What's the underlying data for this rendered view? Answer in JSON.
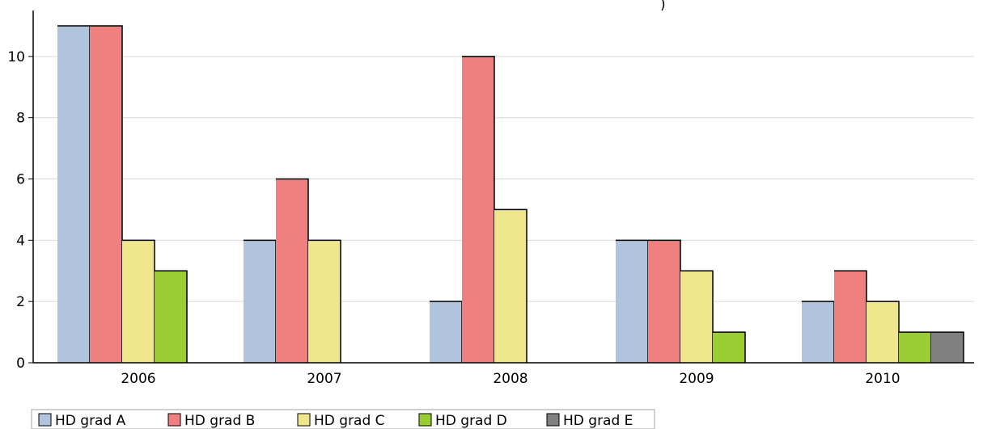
{
  "chart_data": {
    "type": "bar",
    "title": "",
    "xlabel": "",
    "ylabel": "",
    "categories": [
      "2006",
      "2007",
      "2008",
      "2009",
      "2010"
    ],
    "ylim": [
      0,
      11.5
    ],
    "yticks": [
      0,
      2,
      4,
      6,
      8,
      10
    ],
    "grid": true,
    "legend_position": "bottom-left",
    "series": [
      {
        "name": "HD grad A",
        "color": "#b0c4de",
        "values": [
          11,
          4,
          2,
          4,
          2
        ]
      },
      {
        "name": "HD grad B",
        "color": "#f08080",
        "values": [
          11,
          6,
          10,
          4,
          3
        ]
      },
      {
        "name": "HD grad C",
        "color": "#f0e68c",
        "values": [
          4,
          4,
          5,
          3,
          2
        ]
      },
      {
        "name": "HD grad D",
        "color": "#9acd32",
        "values": [
          3,
          0,
          0,
          1,
          1
        ]
      },
      {
        "name": "HD grad E",
        "color": "#808080",
        "values": [
          0,
          0,
          0,
          0,
          1
        ]
      }
    ],
    "annotation": ")"
  }
}
